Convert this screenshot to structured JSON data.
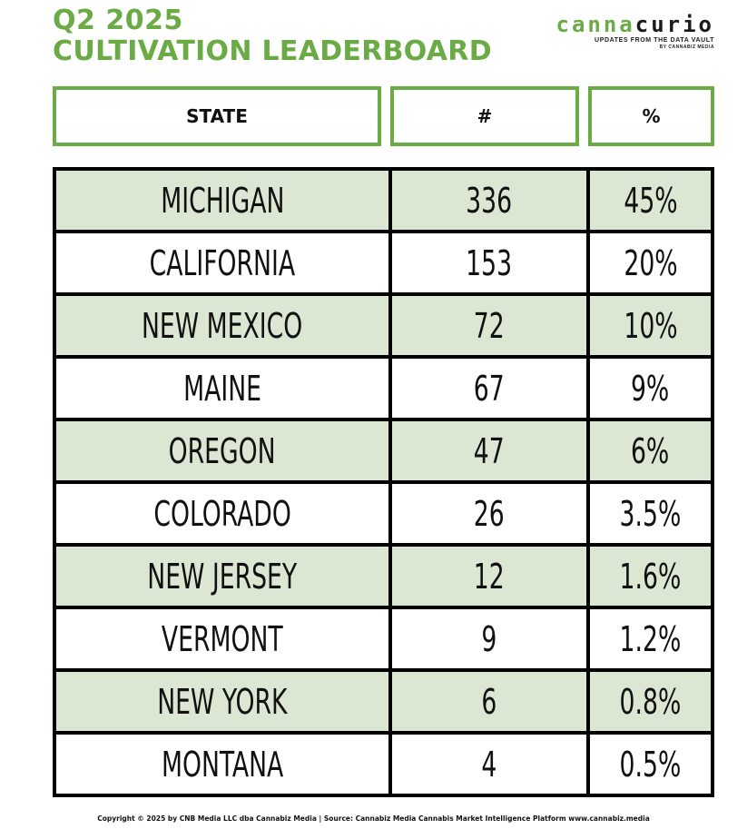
{
  "title": {
    "line1": "Q2 2025",
    "line2": "CULTIVATION LEADERBOARD"
  },
  "brand": {
    "logo_part1": "canna",
    "logo_part2": "curio",
    "tagline": "UPDATES FROM THE DATA VAULT",
    "byline": "BY CANNABIZ MEDIA"
  },
  "colors": {
    "accent": "#6aab46",
    "row_shade": "#dbe7d2",
    "border": "#000000"
  },
  "headers": {
    "state": "STATE",
    "count": "#",
    "percent": "%"
  },
  "chart_data": {
    "type": "table",
    "title": "Q2 2025 CULTIVATION LEADERBOARD",
    "columns": [
      "STATE",
      "#",
      "%"
    ],
    "rows": [
      {
        "state": "MICHIGAN",
        "count": "336",
        "percent": "45%"
      },
      {
        "state": "CALIFORNIA",
        "count": "153",
        "percent": "20%"
      },
      {
        "state": "NEW MEXICO",
        "count": "72",
        "percent": "10%"
      },
      {
        "state": "MAINE",
        "count": "67",
        "percent": "9%"
      },
      {
        "state": "OREGON",
        "count": "47",
        "percent": "6%"
      },
      {
        "state": "COLORADO",
        "count": "26",
        "percent": "3.5%"
      },
      {
        "state": "NEW JERSEY",
        "count": "12",
        "percent": "1.6%"
      },
      {
        "state": "VERMONT",
        "count": "9",
        "percent": "1.2%"
      },
      {
        "state": "NEW YORK",
        "count": "6",
        "percent": "0.8%"
      },
      {
        "state": "MONTANA",
        "count": "4",
        "percent": "0.5%"
      }
    ]
  },
  "footer": {
    "text": "Copyright © 2025 by CNB Media LLC dba Cannabiz Media | Source: Cannabiz Media Cannabis Market Intelligence Platform  www.cannabiz.media"
  }
}
